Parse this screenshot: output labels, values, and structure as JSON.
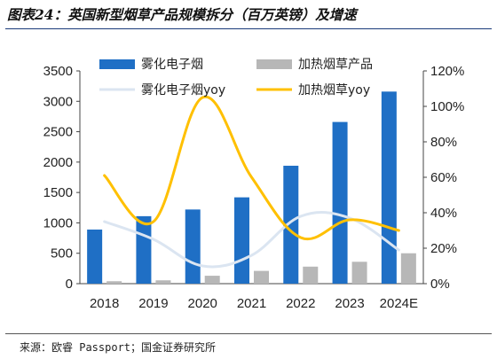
{
  "title": "图表24：英国新型烟草产品规模拆分（百万英镑）及增速",
  "source": "来源：欧睿 Passport；国金证券研究所",
  "chart_data": {
    "type": "bar",
    "categories": [
      "2018",
      "2019",
      "2020",
      "2021",
      "2022",
      "2023",
      "2024E"
    ],
    "series": [
      {
        "name": "雾化电子烟",
        "type": "bar",
        "axis": "left",
        "color": "#1f6fc5",
        "values": [
          890,
          1110,
          1220,
          1420,
          1940,
          2660,
          3160
        ]
      },
      {
        "name": "加热烟草产品",
        "type": "bar",
        "axis": "left",
        "color": "#b7b7b7",
        "values": [
          40,
          55,
          130,
          210,
          280,
          360,
          500
        ]
      },
      {
        "name": "雾化电子烟yoy",
        "type": "line",
        "axis": "right",
        "color": "#dbe5f1",
        "values": [
          0.35,
          0.25,
          0.1,
          0.16,
          0.38,
          0.37,
          0.19
        ]
      },
      {
        "name": "加热烟草yoy",
        "type": "line",
        "axis": "right",
        "color": "#ffc000",
        "values": [
          0.61,
          0.35,
          1.05,
          0.6,
          0.26,
          0.36,
          0.3
        ]
      }
    ],
    "left_axis": {
      "min": 0,
      "max": 3500,
      "ticks": [
        0,
        500,
        1000,
        1500,
        2000,
        2500,
        3000,
        3500
      ]
    },
    "right_axis": {
      "min": 0,
      "max": 1.2,
      "ticks": [
        "0%",
        "20%",
        "40%",
        "60%",
        "80%",
        "100%",
        "120%"
      ]
    },
    "legend_position": "top",
    "grid": false
  }
}
